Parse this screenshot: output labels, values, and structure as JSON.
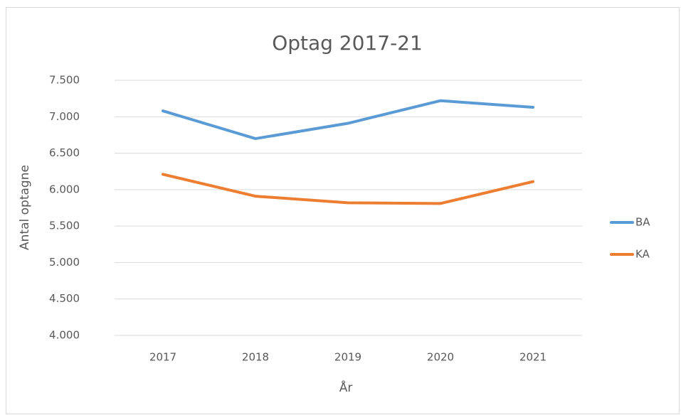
{
  "chart_data": {
    "type": "line",
    "title": "Optag 2017-21",
    "x_label": "År",
    "y_label": "Antal optagne",
    "categories": [
      "2017",
      "2018",
      "2019",
      "2020",
      "2021"
    ],
    "series": [
      {
        "name": "BA",
        "color": "#5b9bd5",
        "values": [
          7080,
          6700,
          6910,
          7220,
          7130
        ]
      },
      {
        "name": "KA",
        "color": "#ed7d31",
        "values": [
          6210,
          5910,
          5820,
          5810,
          6110
        ]
      }
    ],
    "ylim": [
      4000,
      7500
    ],
    "yticks": [
      {
        "value": 4000,
        "label": "4.000"
      },
      {
        "value": 4500,
        "label": "4.500"
      },
      {
        "value": 5000,
        "label": "5.000"
      },
      {
        "value": 5500,
        "label": "5.500"
      },
      {
        "value": 6000,
        "label": "6.000"
      },
      {
        "value": 6500,
        "label": "6.500"
      },
      {
        "value": 7000,
        "label": "7.000"
      },
      {
        "value": 7500,
        "label": "7.500"
      }
    ],
    "grid": true,
    "legend": "right"
  }
}
